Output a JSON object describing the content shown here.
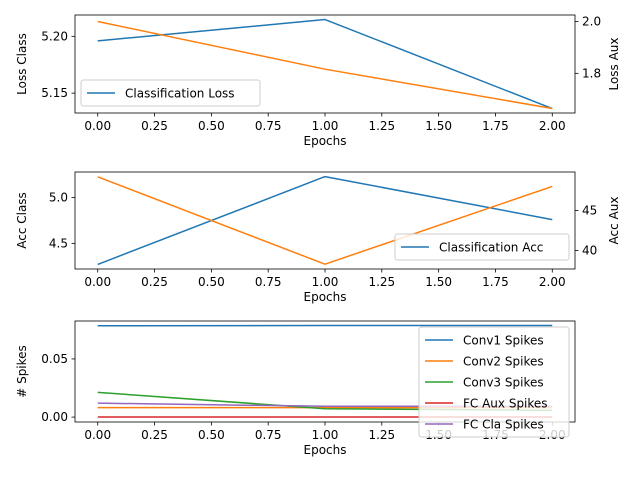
{
  "colors": {
    "blue": "#1f77b4",
    "orange": "#ff7f0e",
    "green": "#2ca02c",
    "red": "#d62728",
    "purple": "#9467bd"
  },
  "chart_data": [
    {
      "type": "line",
      "xlabel": "Epochs",
      "ylabel": "Loss Class",
      "ylabel_right": "Loss Aux",
      "xlim": [
        -0.1,
        2.1
      ],
      "ylim": [
        5.1325,
        5.2188
      ],
      "ylim_right": [
        1.647,
        2.025
      ],
      "xticks": [
        0.0,
        0.25,
        0.5,
        0.75,
        1.0,
        1.25,
        1.5,
        1.75,
        2.0
      ],
      "xtick_labels": [
        "0.00",
        "0.25",
        "0.50",
        "0.75",
        "1.00",
        "1.25",
        "1.50",
        "1.75",
        "2.00"
      ],
      "yticks": [
        5.15,
        5.2
      ],
      "ytick_labels": [
        "5.15",
        "5.20"
      ],
      "yticks_right": [
        1.8,
        2.0
      ],
      "ytick_labels_right": [
        "1.8",
        "2.0"
      ],
      "legend_position": "lower-left",
      "grid": false,
      "series": [
        {
          "name": "Classification Loss",
          "axis": "left",
          "color": "#1f77b4",
          "x": [
            0,
            1,
            2
          ],
          "values": [
            5.196,
            5.2148,
            5.1364
          ]
        },
        {
          "axis": "right",
          "color": "#ff7f0e",
          "x": [
            0,
            1,
            2
          ],
          "values": [
            2.0,
            1.816,
            1.6645
          ]
        }
      ]
    },
    {
      "type": "line",
      "xlabel": "Epochs",
      "ylabel": "Acc Class",
      "ylabel_right": "Acc Aux",
      "xlim": [
        -0.1,
        2.1
      ],
      "ylim": [
        4.22,
        5.28
      ],
      "ylim_right": [
        37.7,
        49.8
      ],
      "xticks": [
        0.0,
        0.25,
        0.5,
        0.75,
        1.0,
        1.25,
        1.5,
        1.75,
        2.0
      ],
      "xtick_labels": [
        "0.00",
        "0.25",
        "0.50",
        "0.75",
        "1.00",
        "1.25",
        "1.50",
        "1.75",
        "2.00"
      ],
      "yticks": [
        4.5,
        5.0
      ],
      "ytick_labels": [
        "4.5",
        "5.0"
      ],
      "yticks_right": [
        40,
        45
      ],
      "ytick_labels_right": [
        "40",
        "45"
      ],
      "legend_position": "lower-right",
      "grid": false,
      "series": [
        {
          "name": "Classification Acc",
          "axis": "left",
          "color": "#1f77b4",
          "x": [
            0,
            1,
            2
          ],
          "values": [
            4.27,
            5.23,
            4.76
          ]
        },
        {
          "axis": "right",
          "color": "#ff7f0e",
          "x": [
            0,
            1,
            2
          ],
          "values": [
            49.2,
            38.3,
            48.0
          ]
        }
      ]
    },
    {
      "type": "line",
      "xlabel": "Epochs",
      "ylabel": "# Spikes",
      "xlim": [
        -0.1,
        2.1
      ],
      "ylim": [
        -0.0042,
        0.0826
      ],
      "xticks": [
        0.0,
        0.25,
        0.5,
        0.75,
        1.0,
        1.25,
        1.5,
        1.75,
        2.0
      ],
      "xtick_labels": [
        "0.00",
        "0.25",
        "0.50",
        "0.75",
        "1.00",
        "1.25",
        "1.50",
        "1.75",
        "2.00"
      ],
      "yticks": [
        0.0,
        0.05
      ],
      "ytick_labels": [
        "0.00",
        "0.05"
      ],
      "legend_position": "upper-right",
      "grid": false,
      "series": [
        {
          "name": "Conv1 Spikes",
          "color": "#1f77b4",
          "x": [
            0,
            1,
            2
          ],
          "values": [
            0.0785,
            0.0787,
            0.0787
          ]
        },
        {
          "name": "Conv2 Spikes",
          "color": "#ff7f0e",
          "x": [
            0,
            1,
            2
          ],
          "values": [
            0.0082,
            0.0082,
            0.0082
          ]
        },
        {
          "name": "Conv3 Spikes",
          "color": "#2ca02c",
          "x": [
            0,
            1,
            2
          ],
          "values": [
            0.0213,
            0.0072,
            0.0058
          ]
        },
        {
          "name": "FC Aux Spikes",
          "color": "#d62728",
          "x": [
            0,
            1,
            2
          ],
          "values": [
            0.0001,
            0.0001,
            0.0001
          ]
        },
        {
          "name": "FC Cla Spikes",
          "color": "#9467bd",
          "x": [
            0,
            1,
            2
          ],
          "values": [
            0.012,
            0.0093,
            0.0093
          ]
        }
      ]
    }
  ]
}
